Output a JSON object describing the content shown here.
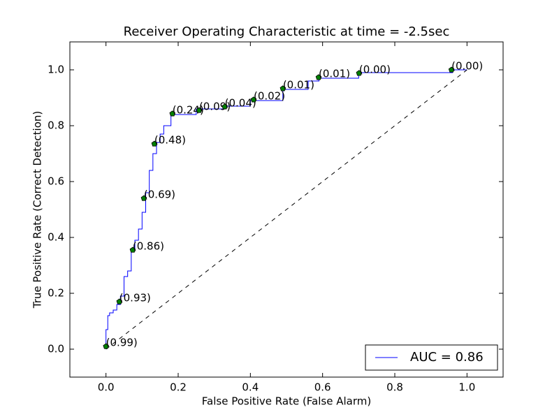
{
  "chart_data": {
    "type": "line",
    "title": "Receiver Operating Characteristic at time = -2.5sec",
    "xlabel": "False Positive Rate (False Alarm)",
    "ylabel": "True Positive Rate (Correct Detection)",
    "xlim": [
      -0.1,
      1.1
    ],
    "ylim": [
      -0.1,
      1.1
    ],
    "xticks": [
      {
        "value": 0,
        "label": "0.0"
      },
      0.2,
      0.4,
      0.6,
      0.8,
      {
        "value": 1,
        "label": "1.0"
      }
    ],
    "yticks": [
      {
        "value": 0,
        "label": "0.0"
      },
      0.2,
      0.4,
      0.6,
      0.8,
      {
        "value": 1,
        "label": "1.0"
      }
    ],
    "legend": "lower right",
    "series": [
      {
        "name": "AUC = 0.86",
        "color": "#0000ff",
        "x": [
          0,
          0,
          0.005,
          0.005,
          0.01,
          0.01,
          0.02,
          0.02,
          0.03,
          0.03,
          0.04,
          0.04,
          0.05,
          0.05,
          0.06,
          0.06,
          0.07,
          0.07,
          0.08,
          0.08,
          0.09,
          0.09,
          0.1,
          0.1,
          0.11,
          0.11,
          0.12,
          0.12,
          0.13,
          0.13,
          0.14,
          0.14,
          0.15,
          0.15,
          0.16,
          0.16,
          0.18,
          0.18,
          0.25,
          0.25,
          0.33,
          0.33,
          0.4,
          0.4,
          0.49,
          0.49,
          0.56,
          0.56,
          0.59,
          0.59,
          0.7,
          0.7,
          0.96,
          0.96,
          1.0
        ],
        "values": [
          0,
          0.07,
          0.07,
          0.12,
          0.12,
          0.13,
          0.13,
          0.14,
          0.14,
          0.16,
          0.16,
          0.19,
          0.19,
          0.26,
          0.26,
          0.28,
          0.28,
          0.36,
          0.36,
          0.39,
          0.39,
          0.43,
          0.43,
          0.49,
          0.49,
          0.56,
          0.56,
          0.64,
          0.64,
          0.7,
          0.7,
          0.74,
          0.74,
          0.77,
          0.77,
          0.8,
          0.8,
          0.84,
          0.84,
          0.86,
          0.86,
          0.87,
          0.87,
          0.89,
          0.89,
          0.93,
          0.93,
          0.96,
          0.96,
          0.97,
          0.97,
          0.99,
          0.99,
          1.0,
          1.0
        ]
      },
      {
        "color": "#000000",
        "style": "dashed",
        "x": [
          0,
          1
        ],
        "values": [
          0,
          1
        ]
      },
      {
        "color": "#008000",
        "style": "markers",
        "x": [
          0.0,
          0.037,
          0.074,
          0.105,
          0.134,
          0.184,
          0.258,
          0.329,
          0.409,
          0.49,
          0.589,
          0.701,
          0.957
        ],
        "values": [
          0.01,
          0.17,
          0.355,
          0.54,
          0.735,
          0.843,
          0.855,
          0.868,
          0.893,
          0.933,
          0.973,
          0.988,
          1.0
        ],
        "annotations": [
          "(0.99)",
          "(0.93)",
          "(0.86)",
          "(0.69)",
          "(0.48)",
          "(0.24)",
          "(0.09)",
          "(0.04)",
          "(0.02)",
          "(0.01)",
          "(0.01)",
          "(0.00)",
          "(0.00)"
        ]
      }
    ]
  }
}
